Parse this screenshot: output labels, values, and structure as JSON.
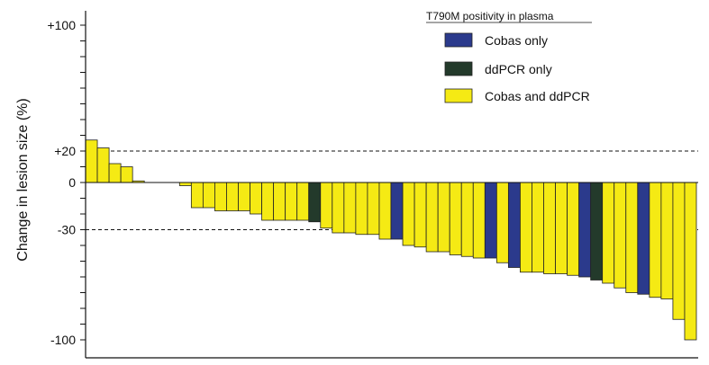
{
  "chart_data": {
    "type": "bar",
    "title": "",
    "ylabel": "Change in lesion size (%)",
    "xlabel": "",
    "ylim": [
      -108,
      110
    ],
    "y_ticks": [
      {
        "value": 100,
        "label": "+100"
      },
      {
        "value": 20,
        "label": "+20"
      },
      {
        "value": 0,
        "label": "0"
      },
      {
        "value": -30,
        "label": "-30"
      },
      {
        "value": -100,
        "label": "-100"
      }
    ],
    "reference_lines": [
      20,
      -30
    ],
    "legend": {
      "title": "T790M positivity in plasma",
      "position": "top-right",
      "entries": [
        {
          "key": "cobas",
          "label": "Cobas only",
          "color": "#2b3a8c"
        },
        {
          "key": "ddpcr",
          "label": "ddPCR only",
          "color": "#233a2b"
        },
        {
          "key": "both",
          "label": "Cobas and ddPCR",
          "color": "#f5ea14"
        }
      ]
    },
    "bars": [
      {
        "value": 27,
        "group": "both"
      },
      {
        "value": 22,
        "group": "both"
      },
      {
        "value": 12,
        "group": "both"
      },
      {
        "value": 10,
        "group": "both"
      },
      {
        "value": 1,
        "group": "both"
      },
      {
        "value": 0,
        "group": "both"
      },
      {
        "value": 0,
        "group": "both"
      },
      {
        "value": 0,
        "group": "both"
      },
      {
        "value": -2,
        "group": "both"
      },
      {
        "value": -16,
        "group": "both"
      },
      {
        "value": -16,
        "group": "both"
      },
      {
        "value": -18,
        "group": "both"
      },
      {
        "value": -18,
        "group": "both"
      },
      {
        "value": -18,
        "group": "both"
      },
      {
        "value": -20,
        "group": "both"
      },
      {
        "value": -24,
        "group": "both"
      },
      {
        "value": -24,
        "group": "both"
      },
      {
        "value": -24,
        "group": "both"
      },
      {
        "value": -24,
        "group": "both"
      },
      {
        "value": -25,
        "group": "ddpcr"
      },
      {
        "value": -29,
        "group": "both"
      },
      {
        "value": -32,
        "group": "both"
      },
      {
        "value": -32,
        "group": "both"
      },
      {
        "value": -33,
        "group": "both"
      },
      {
        "value": -33,
        "group": "both"
      },
      {
        "value": -36,
        "group": "both"
      },
      {
        "value": -36,
        "group": "cobas"
      },
      {
        "value": -40,
        "group": "both"
      },
      {
        "value": -41,
        "group": "both"
      },
      {
        "value": -44,
        "group": "both"
      },
      {
        "value": -44,
        "group": "both"
      },
      {
        "value": -46,
        "group": "both"
      },
      {
        "value": -47,
        "group": "both"
      },
      {
        "value": -48,
        "group": "both"
      },
      {
        "value": -48,
        "group": "cobas"
      },
      {
        "value": -51,
        "group": "both"
      },
      {
        "value": -54,
        "group": "cobas"
      },
      {
        "value": -57,
        "group": "both"
      },
      {
        "value": -57,
        "group": "both"
      },
      {
        "value": -58,
        "group": "both"
      },
      {
        "value": -58,
        "group": "both"
      },
      {
        "value": -59,
        "group": "both"
      },
      {
        "value": -60,
        "group": "cobas"
      },
      {
        "value": -62,
        "group": "ddpcr"
      },
      {
        "value": -64,
        "group": "both"
      },
      {
        "value": -67,
        "group": "both"
      },
      {
        "value": -70,
        "group": "both"
      },
      {
        "value": -71,
        "group": "cobas"
      },
      {
        "value": -73,
        "group": "both"
      },
      {
        "value": -74,
        "group": "both"
      },
      {
        "value": -87,
        "group": "both"
      },
      {
        "value": -100,
        "group": "both"
      }
    ]
  }
}
